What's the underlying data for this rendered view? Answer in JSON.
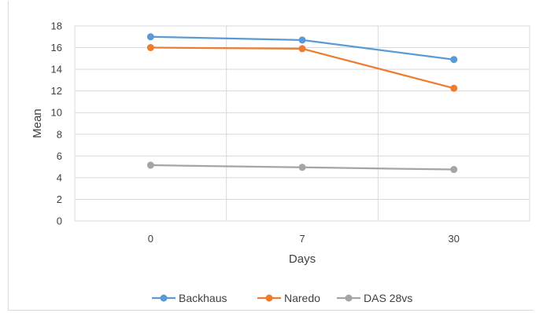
{
  "chart_data": {
    "type": "line",
    "categories": [
      "0",
      "7",
      "30"
    ],
    "series": [
      {
        "name": "Backhaus",
        "color": "#5b9bd5",
        "values": [
          17.0,
          16.7,
          14.9
        ]
      },
      {
        "name": "Naredo",
        "color": "#ed7d31",
        "values": [
          16.0,
          15.9,
          12.25
        ]
      },
      {
        "name": "DAS 28vs",
        "color": "#a5a5a5",
        "values": [
          5.15,
          4.95,
          4.75
        ]
      }
    ],
    "title": "",
    "xlabel": "Days",
    "ylabel": "Mean",
    "ylim": [
      0,
      18
    ],
    "yticks": [
      "0",
      "2",
      "4",
      "6",
      "8",
      "10",
      "12",
      "14",
      "16",
      "18"
    ],
    "grid": true,
    "legend_position": "bottom"
  }
}
